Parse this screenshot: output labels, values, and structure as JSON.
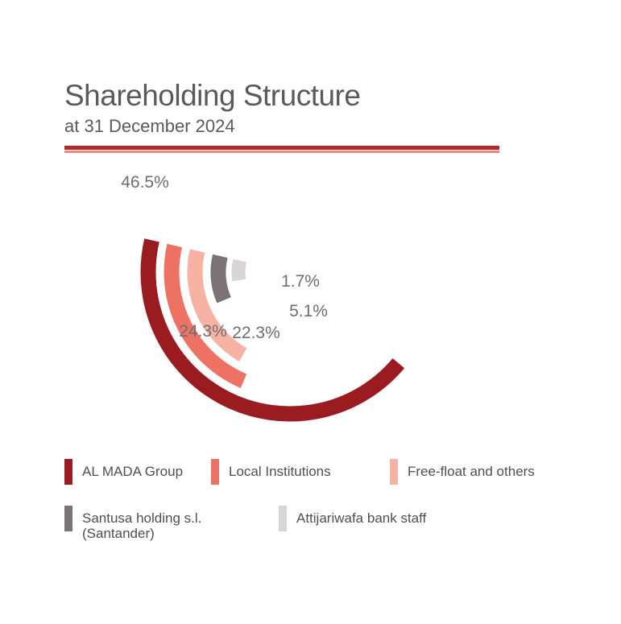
{
  "header": {
    "title": "Shareholding Structure",
    "subtitle": "at 31 December 2024"
  },
  "chart_data": {
    "type": "pie",
    "title": "Shareholding Structure",
    "subtitle": "at 31 December 2024",
    "categories": [
      "AL MADA Group",
      "Local Institutions",
      "Free-float and others",
      "Santusa holding s.l.\n(Santander)",
      "Attijariwafa bank staff"
    ],
    "values": [
      46.5,
      24.3,
      22.3,
      5.1,
      1.7
    ],
    "labels": [
      "46.5%",
      "24.3%",
      "22.3%",
      "5.1%",
      "1.7%"
    ],
    "colors": [
      "#9b1c20",
      "#ee7263",
      "#f6b2a3",
      "#7a7273",
      "#d7d5d6"
    ],
    "legend_placement": "bottom"
  }
}
